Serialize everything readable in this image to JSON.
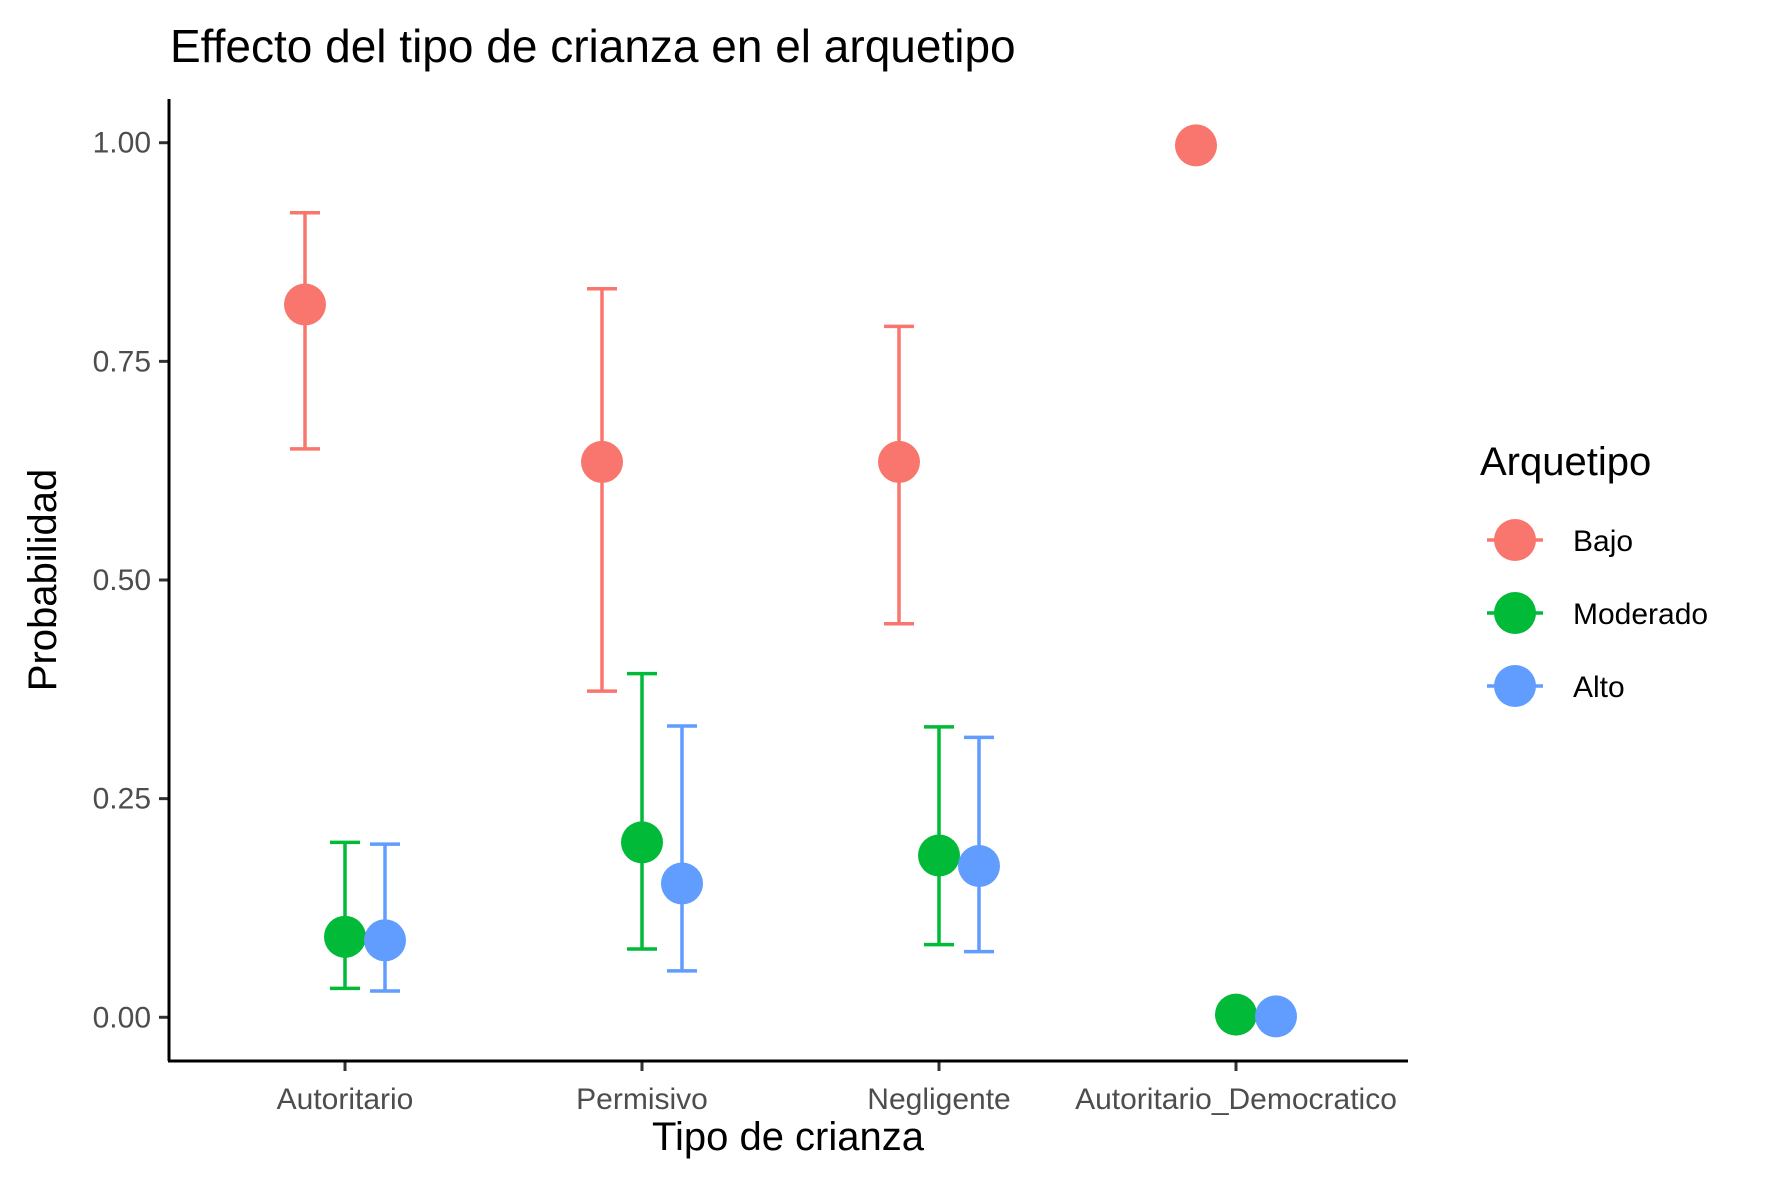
{
  "chart_data": {
    "type": "scatter",
    "title": "Effecto del tipo de crianza en el arquetipo",
    "xlabel": "Tipo de crianza",
    "ylabel": "Probabilidad",
    "categories": [
      "Autoritario",
      "Permisivo",
      "Negligente",
      "Autoritario_Democratico"
    ],
    "ylim": [
      -0.05,
      1.05
    ],
    "yticks": [
      0.0,
      0.25,
      0.5,
      0.75,
      1.0
    ],
    "ytick_labels": [
      "0.00",
      "0.25",
      "0.50",
      "0.75",
      "1.00"
    ],
    "grid": false,
    "legend": {
      "title": "Arquetipo",
      "position": "right"
    },
    "series": [
      {
        "name": "Bajo",
        "color": "#F8766D",
        "values": [
          0.815,
          0.635,
          0.635,
          0.997
        ],
        "lower": [
          0.65,
          0.373,
          0.45,
          null
        ],
        "upper": [
          0.92,
          0.833,
          0.79,
          null
        ]
      },
      {
        "name": "Moderado",
        "color": "#00BA38",
        "values": [
          0.092,
          0.2,
          0.185,
          0.003
        ],
        "lower": [
          0.033,
          0.078,
          0.083,
          null
        ],
        "upper": [
          0.2,
          0.393,
          0.332,
          null
        ]
      },
      {
        "name": "Alto",
        "color": "#619CFF",
        "values": [
          0.088,
          0.153,
          0.173,
          0.001
        ],
        "lower": [
          0.03,
          0.053,
          0.075,
          null
        ],
        "upper": [
          0.198,
          0.333,
          0.32,
          null
        ]
      }
    ]
  }
}
